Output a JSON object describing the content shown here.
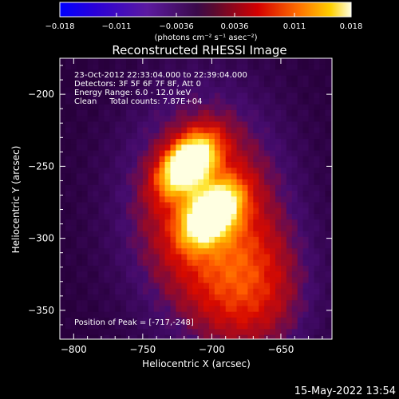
{
  "chart_data": {
    "type": "heatmap",
    "title": "Reconstructed RHESSI Image",
    "xlabel": "Heliocentric X (arcsec)",
    "ylabel": "Heliocentric Y (arcsec)",
    "xlim": [
      -810,
      -613
    ],
    "ylim": [
      -370,
      -175
    ],
    "xticks": [
      -800,
      -750,
      -700,
      -650
    ],
    "yticks": [
      -200,
      -250,
      -300,
      -350
    ],
    "colorbar": {
      "min": -0.018,
      "max": 0.018,
      "ticks": [
        -0.018,
        -0.011,
        -0.0036,
        0.0036,
        0.011,
        0.018
      ],
      "tick_labels": [
        "-0.018",
        "-0.011",
        "-0.0036",
        "0.0036",
        "0.011",
        "0.018"
      ],
      "label": "(photons cm⁻² s⁻¹ asec⁻²)"
    },
    "info_lines": [
      "23-Oct-2012 22:33:04.000 to 22:39:04.000",
      "Detectors: 3F 5F 6F 7F 8F, Att 0",
      "Energy Range: 6.0 - 12.0 keV",
      "Clean     Total counts: 7.87E+04"
    ],
    "peak_text": "Position of Peak = [-717,-248]",
    "sources": [
      {
        "x": -717,
        "y": -248,
        "peak": 0.018
      },
      {
        "x": -700,
        "y": -283,
        "peak": 0.0175
      }
    ]
  },
  "footer": {
    "date": "15-May-2022 13:54"
  }
}
